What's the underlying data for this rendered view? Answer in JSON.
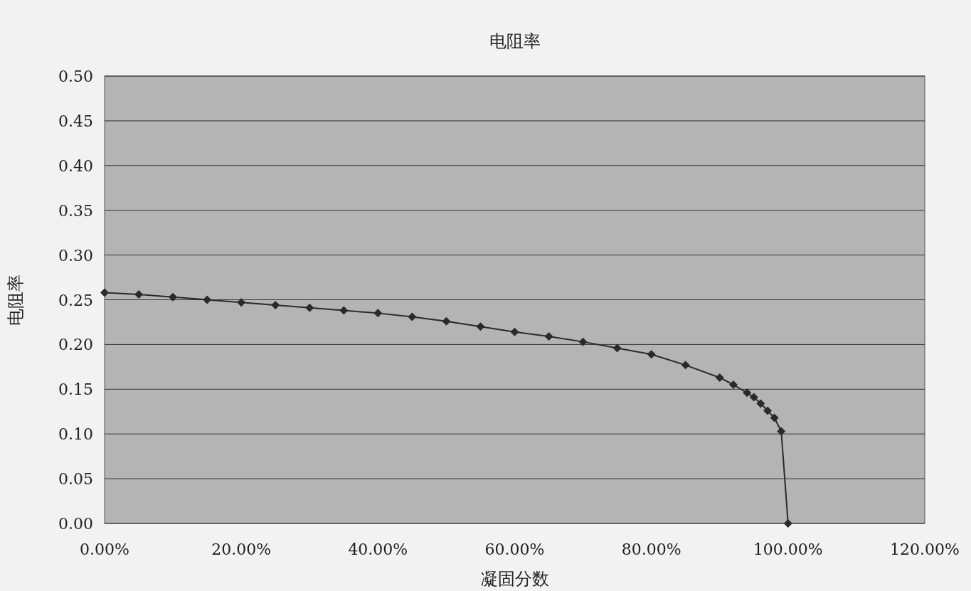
{
  "chart_data": {
    "type": "line",
    "title": "电阻率",
    "xlabel": "凝固分数",
    "ylabel": "电阻率",
    "x": [
      0,
      5,
      10,
      15,
      20,
      25,
      30,
      35,
      40,
      45,
      50,
      55,
      60,
      65,
      70,
      75,
      80,
      85,
      90,
      92,
      94,
      95,
      96,
      97,
      98,
      99,
      100
    ],
    "series": [
      {
        "color": "#2a2a2a",
        "values": [
          0.258,
          0.256,
          0.253,
          0.25,
          0.247,
          0.244,
          0.241,
          0.238,
          0.235,
          0.231,
          0.226,
          0.22,
          0.214,
          0.209,
          0.203,
          0.196,
          0.189,
          0.177,
          0.163,
          0.155,
          0.146,
          0.141,
          0.134,
          0.126,
          0.118,
          0.103,
          0
        ]
      }
    ],
    "xlim": [
      0,
      120
    ],
    "xticks": [
      {
        "value": 0,
        "label": "0.00%"
      },
      {
        "value": 20,
        "label": "20.00%"
      },
      {
        "value": 40,
        "label": "40.00%"
      },
      {
        "value": 60,
        "label": "60.00%"
      },
      {
        "value": 80,
        "label": "80.00%"
      },
      {
        "value": 100,
        "label": "100.00%"
      },
      {
        "value": 120,
        "label": "120.00%"
      }
    ],
    "ylim": [
      0,
      0.5
    ],
    "yticks": [
      {
        "value": 0,
        "label": "0.00"
      },
      {
        "value": 0.05,
        "label": "0.05"
      },
      {
        "value": 0.1,
        "label": "0.10"
      },
      {
        "value": 0.15,
        "label": "0.15"
      },
      {
        "value": 0.2,
        "label": "0.20"
      },
      {
        "value": 0.25,
        "label": "0.25"
      },
      {
        "value": 0.3,
        "label": "0.30"
      },
      {
        "value": 0.35,
        "label": "0.35"
      },
      {
        "value": 0.4,
        "label": "0.40"
      },
      {
        "value": 0.45,
        "label": "0.45"
      },
      {
        "value": 0.5,
        "label": "0.50"
      }
    ],
    "grid": "y",
    "marker": "diamond",
    "line_style": "solid"
  }
}
